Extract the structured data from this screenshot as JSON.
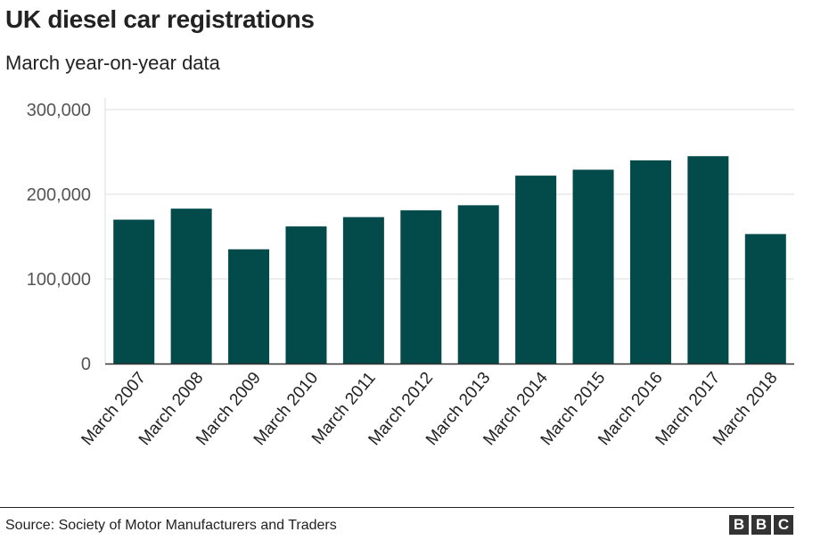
{
  "header": {
    "title": "UK diesel car registrations",
    "subtitle": "March year-on-year data"
  },
  "footer": {
    "source": "Source: Society of Motor Manufacturers and Traders",
    "logo_letters": [
      "B",
      "B",
      "C"
    ]
  },
  "colors": {
    "bar": "#034a4a",
    "grid": "#dcdcdc",
    "axis": "#333333",
    "text": "#222222",
    "tick_text": "#555555"
  },
  "chart_data": {
    "type": "bar",
    "title": "UK diesel car registrations",
    "subtitle": "March year-on-year data",
    "xlabel": "",
    "ylabel": "",
    "categories": [
      "March 2007",
      "March 2008",
      "March 2009",
      "March 2010",
      "March 2011",
      "March 2012",
      "March 2013",
      "March 2014",
      "March 2015",
      "March 2016",
      "March 2017",
      "March 2018"
    ],
    "values": [
      170000,
      183000,
      135000,
      162000,
      173000,
      181000,
      187000,
      222000,
      229000,
      240000,
      245000,
      153000
    ],
    "ylim": [
      0,
      300000
    ],
    "yticks": [
      0,
      100000,
      200000,
      300000
    ],
    "ytick_labels": [
      "0",
      "100,000",
      "200,000",
      "300,000"
    ],
    "grid": true,
    "legend": "none"
  }
}
